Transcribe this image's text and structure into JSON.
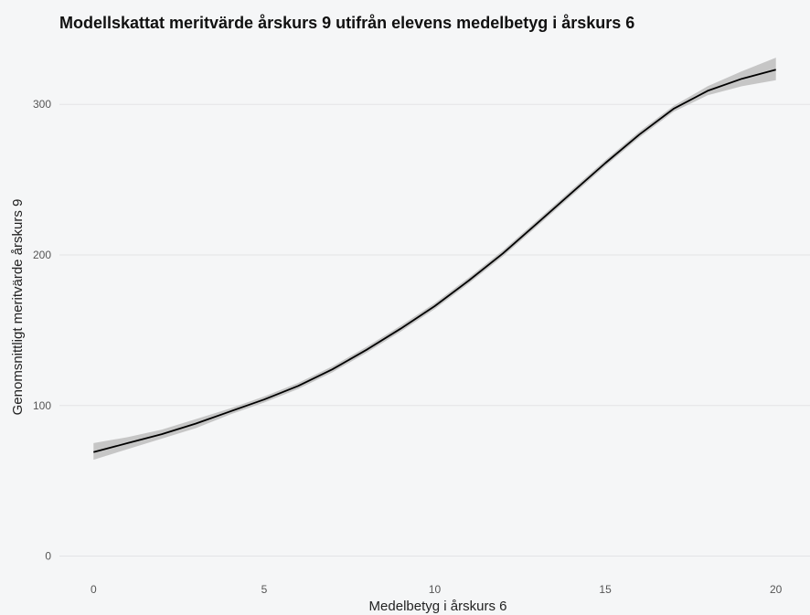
{
  "chart_data": {
    "type": "line",
    "title": "Modellskattat meritvärde årskurs 9 utifrån elevens medelbetyg i årskurs 6",
    "xlabel": "Medelbetyg i årskurs 6",
    "ylabel": "Genomsnittligt meritvärde årskurs 9",
    "xlim": [
      -1,
      21
    ],
    "ylim": [
      -10,
      342
    ],
    "x_ticks": [
      0,
      5,
      10,
      15,
      20
    ],
    "y_ticks": [
      0,
      100,
      200,
      300
    ],
    "grid": "horizontal",
    "legend": "none",
    "series": [
      {
        "x": [
          0,
          1,
          2,
          3,
          4,
          5,
          6,
          7,
          8,
          9,
          10,
          11,
          12,
          13,
          14,
          15,
          16,
          17,
          18,
          19,
          20
        ],
        "y": [
          69,
          75,
          81,
          88,
          96,
          104,
          113,
          124,
          137,
          151,
          166,
          183,
          201,
          221,
          241,
          261,
          280,
          297,
          309,
          317,
          323
        ],
        "ci_lower": [
          64,
          71,
          78,
          85,
          94,
          102,
          111,
          122,
          135,
          149,
          164,
          181,
          199,
          219,
          239,
          259,
          278,
          295,
          306,
          312,
          316
        ],
        "ci_upper": [
          75,
          79,
          84,
          91,
          98,
          106,
          115,
          126,
          139,
          153,
          168,
          185,
          203,
          223,
          243,
          263,
          282,
          299,
          312,
          322,
          331
        ]
      }
    ],
    "colors": {
      "line": "#000000",
      "ribbon": "#bdbdbd",
      "grid": "#e3e4e6",
      "background": "#f5f6f7"
    }
  }
}
